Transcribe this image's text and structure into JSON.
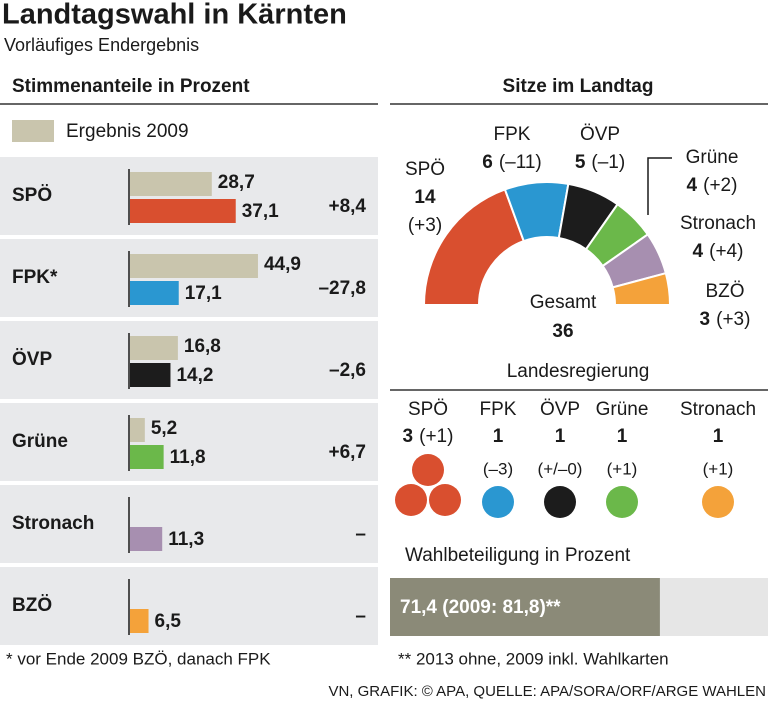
{
  "header": {
    "title": "Landtagswahl in Kärnten",
    "subtitle": "Vorläufiges Endergebnis"
  },
  "chart_data": [
    {
      "type": "bar",
      "title": "Stimmenanteile in Prozent",
      "categories": [
        "SPÖ",
        "FPK*",
        "ÖVP",
        "Grüne",
        "Stronach",
        "BZÖ"
      ],
      "series": [
        {
          "name": "Ergebnis 2009",
          "color": "#c9c5ad",
          "values": [
            28.7,
            44.9,
            16.8,
            5.2,
            null,
            null
          ],
          "value_labels": [
            "28,7",
            "44,9",
            "16,8",
            "5,2",
            null,
            null
          ]
        },
        {
          "colors": [
            "#d94f2f",
            "#2a97d1",
            "#1c1c1c",
            "#6bb84a",
            "#a78fb0",
            "#f4a23a"
          ],
          "values": [
            37.1,
            17.1,
            14.2,
            11.8,
            11.3,
            6.5
          ],
          "value_labels": [
            "37,1",
            "17,1",
            "14,2",
            "11,8",
            "11,3",
            "6,5"
          ]
        }
      ],
      "change_labels": [
        "+8,4",
        "–27,8",
        "–2,6",
        "+6,7",
        "–",
        "–"
      ]
    },
    {
      "type": "pie",
      "title": "Sitze im Landtag",
      "categories": [
        "SPÖ",
        "FPK",
        "ÖVP",
        "Grüne",
        "Stronach",
        "BZÖ"
      ],
      "values": [
        14,
        6,
        5,
        4,
        4,
        3
      ],
      "change_labels": [
        "(+3)",
        "(–11)",
        "(–1)",
        "(+2)",
        "(+4)",
        "(+3)"
      ],
      "colors": [
        "#d94f2f",
        "#2a97d1",
        "#1c1c1c",
        "#6bb84a",
        "#a78fb0",
        "#f4a23a"
      ],
      "center_label": "Gesamt",
      "total": 36
    },
    {
      "type": "dots",
      "title": "Landesregierung",
      "categories": [
        "SPÖ",
        "FPK",
        "ÖVP",
        "Grüne",
        "Stronach"
      ],
      "values": [
        3,
        1,
        1,
        1,
        1
      ],
      "change_labels": [
        "(+1)",
        "(–3)",
        "(+/–0)",
        "(+1)",
        "(+1)"
      ],
      "colors": [
        "#d94f2f",
        "#2a97d1",
        "#1c1c1c",
        "#6bb84a",
        "#f4a23a"
      ]
    },
    {
      "type": "bar",
      "title": "Wahlbeteiligung in Prozent",
      "values": [
        71.4
      ],
      "value_labels": [
        "71,4 (2009: 81,8)**"
      ],
      "color": "#8b8a78",
      "xlim": [
        0,
        100
      ]
    }
  ],
  "footnotes": [
    "* vor Ende 2009 BZÖ, danach FPK",
    "** 2013 ohne, 2009 inkl. Wahlkarten"
  ],
  "source": "VN, GRAFIK: © APA, QUELLE: APA/SORA/ORF/ARGE WAHLEN"
}
